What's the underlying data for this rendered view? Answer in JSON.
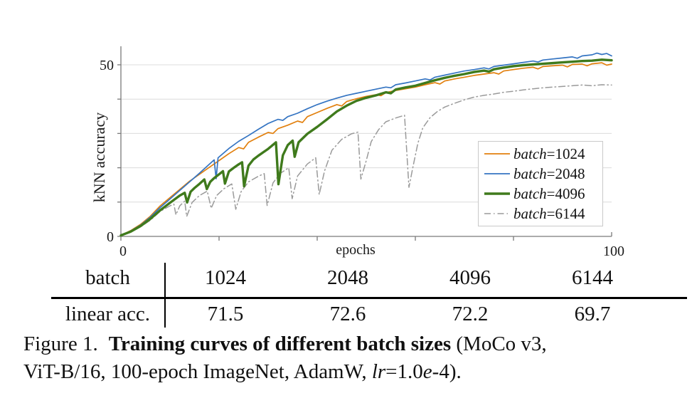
{
  "accent_colors": {
    "orange": "#E2800E",
    "blue": "#3474C2",
    "green": "#3F7A1C",
    "gray": "#9A9A9A",
    "grid": "#dcdcdc",
    "axis": "#7a7a7a",
    "text": "#1a1a1a",
    "legend_border": "#c9c9c9"
  },
  "chart_data": {
    "type": "line",
    "title": "",
    "xlabel": "epochs",
    "ylabel": "kNN accuracy",
    "xlim": [
      0,
      100
    ],
    "ylim": [
      0,
      55.5
    ],
    "grid": "horizontal",
    "legend_position": "right-middle",
    "x_ticks": [
      0,
      20,
      40,
      60,
      80,
      100
    ],
    "y_ticks": [
      0,
      10,
      20,
      30,
      40,
      50
    ],
    "x_tick_labels": [
      {
        "v": 0,
        "t": "0"
      },
      {
        "v": 100,
        "t": "100"
      }
    ],
    "y_tick_labels": [
      {
        "v": 0,
        "t": "0"
      },
      {
        "v": 50,
        "t": "50"
      }
    ],
    "series": [
      {
        "name": "batch=1024",
        "label_italic_part": "batch",
        "label_rest": "=1024",
        "color": "#E2800E",
        "stroke_width": 1.7,
        "dash": "solid",
        "points": [
          [
            0,
            0.3
          ],
          [
            2,
            1.7
          ],
          [
            4,
            3.5
          ],
          [
            6,
            5.9
          ],
          [
            8,
            8.9
          ],
          [
            10,
            11.3
          ],
          [
            12,
            13.7
          ],
          [
            14,
            16.1
          ],
          [
            16,
            18.1
          ],
          [
            18,
            20.1
          ],
          [
            20,
            22.1
          ],
          [
            22,
            24.1
          ],
          [
            24,
            25.9
          ],
          [
            25,
            25.5
          ],
          [
            26,
            27.4
          ],
          [
            28,
            28.9
          ],
          [
            30,
            30.3
          ],
          [
            31,
            30.0
          ],
          [
            32,
            31.4
          ],
          [
            34,
            32.4
          ],
          [
            36,
            33.6
          ],
          [
            37,
            33.2
          ],
          [
            38,
            34.9
          ],
          [
            40,
            36.1
          ],
          [
            42,
            37.3
          ],
          [
            44,
            38.4
          ],
          [
            45,
            38.0
          ],
          [
            46,
            39.3
          ],
          [
            48,
            40.1
          ],
          [
            50,
            40.8
          ],
          [
            52,
            41.3
          ],
          [
            53,
            41.0
          ],
          [
            54,
            41.9
          ],
          [
            56,
            42.5
          ],
          [
            58,
            43.0
          ],
          [
            60,
            43.5
          ],
          [
            62,
            44.2
          ],
          [
            64,
            44.8
          ],
          [
            65,
            44.4
          ],
          [
            66,
            45.3
          ],
          [
            68,
            45.9
          ],
          [
            70,
            46.4
          ],
          [
            72,
            46.9
          ],
          [
            74,
            47.3
          ],
          [
            76,
            47.7
          ],
          [
            77,
            47.3
          ],
          [
            78,
            48.2
          ],
          [
            80,
            48.6
          ],
          [
            82,
            49.0
          ],
          [
            84,
            49.3
          ],
          [
            85,
            48.8
          ],
          [
            86,
            49.5
          ],
          [
            88,
            49.7
          ],
          [
            90,
            49.9
          ],
          [
            91,
            49.4
          ],
          [
            92,
            50.1
          ],
          [
            94,
            50.2
          ],
          [
            95,
            49.7
          ],
          [
            96,
            50.3
          ],
          [
            98,
            50.6
          ],
          [
            99,
            49.9
          ],
          [
            100,
            50.2
          ]
        ]
      },
      {
        "name": "batch=2048",
        "label_italic_part": "batch",
        "label_rest": "=2048",
        "color": "#3474C2",
        "stroke_width": 1.7,
        "dash": "solid",
        "points": [
          [
            0,
            0.3
          ],
          [
            2,
            1.6
          ],
          [
            4,
            3.3
          ],
          [
            6,
            5.6
          ],
          [
            8,
            8.4
          ],
          [
            10,
            10.9
          ],
          [
            12,
            13.4
          ],
          [
            14,
            15.9
          ],
          [
            16,
            18.4
          ],
          [
            18,
            21.0
          ],
          [
            19,
            22.3
          ],
          [
            19.4,
            16.8
          ],
          [
            19.8,
            22.9
          ],
          [
            22,
            25.6
          ],
          [
            24,
            27.7
          ],
          [
            26,
            29.4
          ],
          [
            28,
            31.2
          ],
          [
            30,
            32.9
          ],
          [
            32,
            34.1
          ],
          [
            33,
            33.8
          ],
          [
            34,
            34.9
          ],
          [
            36,
            35.9
          ],
          [
            38,
            37.2
          ],
          [
            40,
            38.4
          ],
          [
            42,
            39.4
          ],
          [
            44,
            40.3
          ],
          [
            46,
            41.1
          ],
          [
            48,
            41.7
          ],
          [
            50,
            42.3
          ],
          [
            52,
            42.9
          ],
          [
            54,
            43.5
          ],
          [
            55,
            43.3
          ],
          [
            56,
            44.2
          ],
          [
            58,
            44.7
          ],
          [
            60,
            45.3
          ],
          [
            62,
            45.9
          ],
          [
            63,
            45.6
          ],
          [
            64,
            46.4
          ],
          [
            66,
            47.0
          ],
          [
            68,
            47.6
          ],
          [
            70,
            48.2
          ],
          [
            72,
            48.6
          ],
          [
            74,
            49.1
          ],
          [
            75,
            48.8
          ],
          [
            76,
            49.5
          ],
          [
            78,
            49.9
          ],
          [
            80,
            50.3
          ],
          [
            82,
            50.7
          ],
          [
            84,
            51.1
          ],
          [
            85,
            50.8
          ],
          [
            86,
            51.4
          ],
          [
            88,
            51.7
          ],
          [
            90,
            52.0
          ],
          [
            92,
            52.3
          ],
          [
            93,
            51.9
          ],
          [
            94,
            52.6
          ],
          [
            96,
            52.9
          ],
          [
            97,
            53.4
          ],
          [
            98,
            53.0
          ],
          [
            99,
            53.3
          ],
          [
            100,
            52.6
          ]
        ]
      },
      {
        "name": "batch=4096",
        "label_italic_part": "batch",
        "label_rest": "=4096",
        "color": "#3F7A1C",
        "stroke_width": 3.4,
        "dash": "solid",
        "points": [
          [
            0,
            0.3
          ],
          [
            2,
            1.4
          ],
          [
            4,
            3.0
          ],
          [
            6,
            5.1
          ],
          [
            8,
            7.6
          ],
          [
            10,
            9.8
          ],
          [
            12,
            11.9
          ],
          [
            13,
            12.7
          ],
          [
            13.5,
            9.9
          ],
          [
            14.2,
            13.0
          ],
          [
            15,
            14.1
          ],
          [
            16,
            15.3
          ],
          [
            17,
            16.6
          ],
          [
            17.5,
            13.8
          ],
          [
            18.2,
            15.9
          ],
          [
            19,
            17.0
          ],
          [
            20,
            18.1
          ],
          [
            20.8,
            19.0
          ],
          [
            21.2,
            15.4
          ],
          [
            22,
            18.9
          ],
          [
            23,
            20.0
          ],
          [
            24,
            21.0
          ],
          [
            24.7,
            21.6
          ],
          [
            25.1,
            14.6
          ],
          [
            26,
            20.6
          ],
          [
            27,
            22.4
          ],
          [
            28,
            23.5
          ],
          [
            29,
            24.5
          ],
          [
            30,
            25.5
          ],
          [
            31.6,
            27.4
          ],
          [
            32.1,
            15.2
          ],
          [
            33,
            23.6
          ],
          [
            34,
            26.6
          ],
          [
            35,
            27.9
          ],
          [
            35.4,
            23.2
          ],
          [
            36.2,
            27.4
          ],
          [
            38,
            29.9
          ],
          [
            40,
            31.9
          ],
          [
            42,
            34.1
          ],
          [
            44,
            36.4
          ],
          [
            46,
            38.1
          ],
          [
            48,
            39.5
          ],
          [
            50,
            40.4
          ],
          [
            52,
            41.1
          ],
          [
            54,
            42.0
          ],
          [
            55,
            41.7
          ],
          [
            56,
            42.8
          ],
          [
            58,
            43.4
          ],
          [
            60,
            43.9
          ],
          [
            62,
            44.7
          ],
          [
            64,
            45.5
          ],
          [
            66,
            46.2
          ],
          [
            68,
            46.8
          ],
          [
            70,
            47.3
          ],
          [
            72,
            47.9
          ],
          [
            74,
            48.3
          ],
          [
            75,
            48.0
          ],
          [
            76,
            48.7
          ],
          [
            78,
            49.2
          ],
          [
            80,
            49.6
          ],
          [
            82,
            49.9
          ],
          [
            84,
            50.1
          ],
          [
            86,
            50.3
          ],
          [
            88,
            50.5
          ],
          [
            90,
            50.7
          ],
          [
            92,
            50.9
          ],
          [
            94,
            51.1
          ],
          [
            96,
            51.2
          ],
          [
            98,
            51.5
          ],
          [
            100,
            51.3
          ]
        ]
      },
      {
        "name": "batch=6144",
        "label_italic_part": "batch",
        "label_rest": "=6144",
        "color": "#9A9A9A",
        "stroke_width": 1.5,
        "dash": "dashdot",
        "points": [
          [
            0,
            0.3
          ],
          [
            2,
            1.3
          ],
          [
            4,
            2.8
          ],
          [
            6,
            4.7
          ],
          [
            8,
            7.3
          ],
          [
            10,
            8.9
          ],
          [
            10.8,
            9.4
          ],
          [
            11.2,
            6.3
          ],
          [
            12,
            8.9
          ],
          [
            13,
            10.3
          ],
          [
            13.4,
            5.8
          ],
          [
            14.5,
            9.9
          ],
          [
            16,
            11.9
          ],
          [
            17.6,
            13.2
          ],
          [
            18.4,
            8.2
          ],
          [
            19.5,
            11.9
          ],
          [
            21,
            13.9
          ],
          [
            22.6,
            15.3
          ],
          [
            23.4,
            7.9
          ],
          [
            24.5,
            13.1
          ],
          [
            26,
            15.9
          ],
          [
            28,
            17.5
          ],
          [
            29.2,
            18.3
          ],
          [
            29.8,
            9.0
          ],
          [
            31,
            15.6
          ],
          [
            32.5,
            18.4
          ],
          [
            34.2,
            20.0
          ],
          [
            34.9,
            11.0
          ],
          [
            36,
            17.6
          ],
          [
            38,
            21.1
          ],
          [
            39.7,
            22.9
          ],
          [
            40.4,
            12.2
          ],
          [
            41.5,
            19.1
          ],
          [
            43,
            25.1
          ],
          [
            45,
            28.3
          ],
          [
            47,
            29.9
          ],
          [
            48.3,
            30.4
          ],
          [
            48.9,
            16.7
          ],
          [
            50,
            22.1
          ],
          [
            51,
            27.6
          ],
          [
            52.5,
            31.1
          ],
          [
            54,
            33.4
          ],
          [
            56,
            34.5
          ],
          [
            57.8,
            35.3
          ],
          [
            58.7,
            14.3
          ],
          [
            59.5,
            20.1
          ],
          [
            60.5,
            27.1
          ],
          [
            61.5,
            31.6
          ],
          [
            63,
            34.6
          ],
          [
            64.5,
            36.4
          ],
          [
            66,
            37.7
          ],
          [
            68,
            38.8
          ],
          [
            70,
            39.8
          ],
          [
            72,
            40.6
          ],
          [
            74,
            41.1
          ],
          [
            76,
            41.5
          ],
          [
            78,
            42.0
          ],
          [
            80,
            42.3
          ],
          [
            82,
            42.7
          ],
          [
            84,
            43.0
          ],
          [
            86,
            43.3
          ],
          [
            88,
            43.5
          ],
          [
            90,
            43.7
          ],
          [
            92,
            43.9
          ],
          [
            94,
            44.1
          ],
          [
            96,
            43.9
          ],
          [
            98,
            44.2
          ],
          [
            100,
            44.1
          ]
        ]
      }
    ]
  },
  "table": {
    "header_row": {
      "label": "batch",
      "values": [
        "1024",
        "2048",
        "4096",
        "6144"
      ]
    },
    "data_row": {
      "label": "linear acc.",
      "values": [
        "71.5",
        "72.6",
        "72.2",
        "69.7"
      ]
    }
  },
  "caption": {
    "lines": [
      [
        {
          "text": "Figure 1.",
          "style": "regular",
          "gap_after": true
        },
        {
          "text": "Training curves of different batch sizes",
          "style": "bold"
        },
        {
          "text": " (MoCo v3,",
          "style": "regular"
        }
      ],
      [
        {
          "text": "ViT-B/16, 100-epoch ImageNet, AdamW, ",
          "style": "regular"
        },
        {
          "text": "lr",
          "style": "italic"
        },
        {
          "text": "=1.0",
          "style": "regular"
        },
        {
          "text": "e",
          "style": "italic"
        },
        {
          "text": "-4).",
          "style": "regular"
        }
      ]
    ]
  }
}
